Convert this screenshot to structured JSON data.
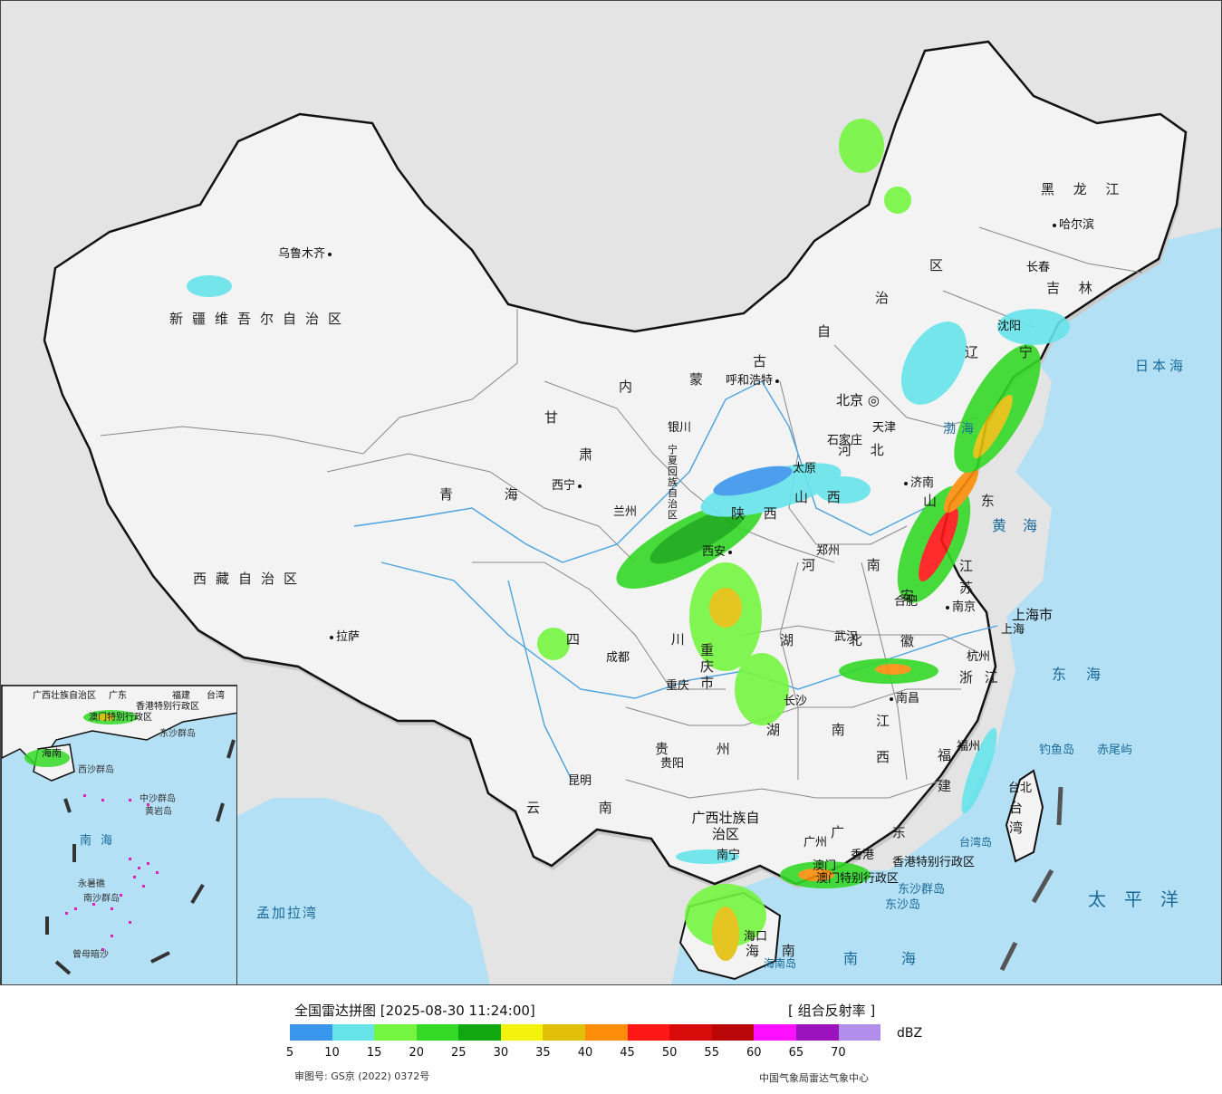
{
  "map": {
    "colors": {
      "land": "#f2f2f2",
      "outside": "#e4e4e4",
      "sea": "#b3e0f5",
      "border": "#111111",
      "province_border": "#888888",
      "river": "#4aa3e0"
    },
    "provinces": [
      {
        "id": "xinjiang",
        "label": "新疆维吾尔自治区"
      },
      {
        "id": "xizang",
        "label": "西藏自治区"
      },
      {
        "id": "qinghai",
        "label": "青  海"
      },
      {
        "id": "gansu",
        "label": "甘"
      },
      {
        "id": "neimenggu_1",
        "label": "内"
      },
      {
        "id": "neimenggu_2",
        "label": "蒙"
      },
      {
        "id": "neimenggu_3",
        "label": "古"
      },
      {
        "id": "neimenggu_4",
        "label": "自"
      },
      {
        "id": "neimenggu_5",
        "label": "治"
      },
      {
        "id": "neimenggu_6",
        "label": "区"
      },
      {
        "id": "heilongjiang",
        "label": "黑 龙 江"
      },
      {
        "id": "jilin",
        "label": "吉 林"
      },
      {
        "id": "liaoning",
        "label": "辽 宁"
      },
      {
        "id": "hebei",
        "label": "河 北"
      },
      {
        "id": "shanxi",
        "label": "山 西"
      },
      {
        "id": "shandong",
        "label": "山 东"
      },
      {
        "id": "henan",
        "label": "河 南"
      },
      {
        "id": "shaanxi",
        "label": "陕 西"
      },
      {
        "id": "ningxia",
        "label": "宁夏回族自治区"
      },
      {
        "id": "sichuan",
        "label": "四 川"
      },
      {
        "id": "chongqing",
        "label": "重 庆 市"
      },
      {
        "id": "hubei",
        "label": "湖 北"
      },
      {
        "id": "hunan",
        "label": "湖 南"
      },
      {
        "id": "jiangxi",
        "label": "江 西"
      },
      {
        "id": "anhui",
        "label": "安 徽"
      },
      {
        "id": "jiangsu",
        "label": "江 苏"
      },
      {
        "id": "zhejiang",
        "label": "浙 江"
      },
      {
        "id": "fujian",
        "label": "福 建"
      },
      {
        "id": "guizhou",
        "label": "贵 州"
      },
      {
        "id": "yunnan",
        "label": "云 南"
      },
      {
        "id": "guangxi",
        "label": "广西壮族自治区"
      },
      {
        "id": "guangdong",
        "label": "广 东"
      },
      {
        "id": "hainan",
        "label": "海 南"
      },
      {
        "id": "taiwan",
        "label": "台 湾"
      },
      {
        "id": "shanghai",
        "label": "上海市"
      },
      {
        "id": "tianjin",
        "label": "天津"
      },
      {
        "id": "hongkong",
        "label": "香港特别行政区"
      },
      {
        "id": "macau",
        "label": "澳门特别行政区"
      },
      {
        "id": "gansu_2",
        "label": "肃"
      }
    ],
    "cities": [
      {
        "id": "wulumuqi",
        "label": "乌鲁木齐"
      },
      {
        "id": "lasa",
        "label": "拉萨"
      },
      {
        "id": "xining",
        "label": "西宁"
      },
      {
        "id": "lanzhou",
        "label": "兰州"
      },
      {
        "id": "yinchuan",
        "label": "银川"
      },
      {
        "id": "huhehaote",
        "label": "呼和浩特"
      },
      {
        "id": "beijing",
        "label": "北京"
      },
      {
        "id": "tianjin_city",
        "label": "天津"
      },
      {
        "id": "shijiazhuang",
        "label": "石家庄"
      },
      {
        "id": "taiyuan",
        "label": "太原"
      },
      {
        "id": "jinan",
        "label": "济南"
      },
      {
        "id": "zhengzhou",
        "label": "郑州"
      },
      {
        "id": "xian",
        "label": "西安"
      },
      {
        "id": "chengdu",
        "label": "成都"
      },
      {
        "id": "chongqing_city",
        "label": "重庆"
      },
      {
        "id": "wuhan",
        "label": "武汉"
      },
      {
        "id": "hefei",
        "label": "合肥"
      },
      {
        "id": "nanjing",
        "label": "南京"
      },
      {
        "id": "shanghai_city",
        "label": "上海"
      },
      {
        "id": "hangzhou",
        "label": "杭州"
      },
      {
        "id": "nanchang",
        "label": "南昌"
      },
      {
        "id": "changsha",
        "label": "长沙"
      },
      {
        "id": "guiyang",
        "label": "贵阳"
      },
      {
        "id": "kunming",
        "label": "昆明"
      },
      {
        "id": "nanning",
        "label": "南宁"
      },
      {
        "id": "guangzhou",
        "label": "广州"
      },
      {
        "id": "xianggang",
        "label": "香港"
      },
      {
        "id": "aomen",
        "label": "澳门"
      },
      {
        "id": "haikou",
        "label": "海口"
      },
      {
        "id": "fuzhou",
        "label": "福州"
      },
      {
        "id": "taibei",
        "label": "台北"
      },
      {
        "id": "haerbin",
        "label": "哈尔滨"
      },
      {
        "id": "changchun",
        "label": "长春"
      },
      {
        "id": "shenyang",
        "label": "沈阳"
      }
    ],
    "seas": [
      {
        "id": "ribenhai",
        "label": "日本海"
      },
      {
        "id": "huanghai",
        "label": "黄海"
      },
      {
        "id": "donghai",
        "label": "东海"
      },
      {
        "id": "nanhai",
        "label": "南海"
      },
      {
        "id": "taipingyang",
        "label": "太平洋"
      },
      {
        "id": "bohai",
        "label": "渤海"
      },
      {
        "id": "mengjialawan",
        "label": "孟加拉湾"
      }
    ],
    "islands": [
      {
        "id": "diaoyudao",
        "label": "钓鱼岛"
      },
      {
        "id": "chiweiyu",
        "label": "赤尾屿"
      },
      {
        "id": "dongsha",
        "label": "东沙群岛"
      },
      {
        "id": "dongshadao",
        "label": "东沙岛"
      },
      {
        "id": "hainandao",
        "label": "海南岛"
      },
      {
        "id": "taiwandao",
        "label": "台湾岛"
      }
    ],
    "inset": {
      "labels": [
        "广西壮族自治区",
        "广东",
        "福建",
        "台湾",
        "香港特别行政区",
        "澳门特别行政区",
        "东沙群岛",
        "海南",
        "西沙群岛",
        "中沙群岛",
        "黄岩岛",
        "南海",
        "永暑礁",
        "南沙群岛",
        "曾母暗沙"
      ]
    }
  },
  "legend": {
    "title": "全国雷达拼图 [2025-08-30 11:24:00]",
    "product": "[ 组合反射率 ]",
    "unit": "dBZ",
    "colors": [
      "#3a96ec",
      "#66e4ea",
      "#74f540",
      "#33d926",
      "#10a70f",
      "#f2f20c",
      "#e2c00a",
      "#fc8e0a",
      "#ff1616",
      "#d90a0a",
      "#b90606",
      "#ff10ff",
      "#9a13bd",
      "#b08de9"
    ],
    "ticks": [
      "5",
      "10",
      "15",
      "20",
      "25",
      "30",
      "35",
      "40",
      "45",
      "50",
      "55",
      "60",
      "65",
      "70"
    ],
    "approval": "审图号: GS京 (2022) 0372号",
    "source": "中国气象局雷达气象中心"
  }
}
